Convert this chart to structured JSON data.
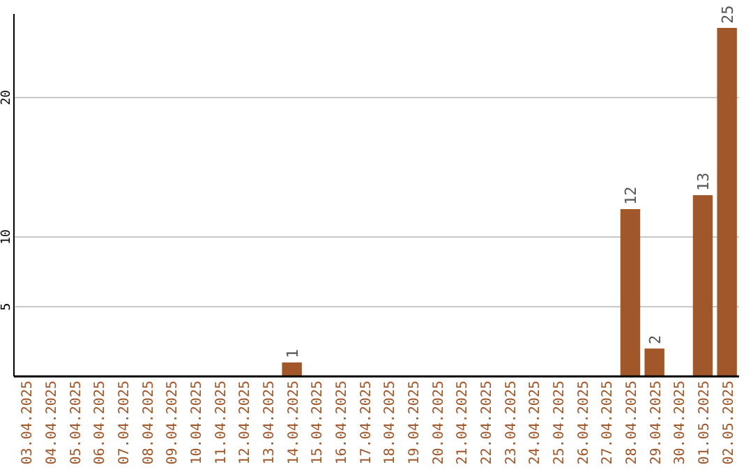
{
  "chart_data": {
    "type": "bar",
    "categories": [
      "03.04.2025",
      "04.04.2025",
      "05.04.2025",
      "06.04.2025",
      "07.04.2025",
      "08.04.2025",
      "09.04.2025",
      "10.04.2025",
      "11.04.2025",
      "12.04.2025",
      "13.04.2025",
      "14.04.2025",
      "15.04.2025",
      "16.04.2025",
      "17.04.2025",
      "18.04.2025",
      "19.04.2025",
      "20.04.2025",
      "21.04.2025",
      "22.04.2025",
      "23.04.2025",
      "24.04.2025",
      "25.04.2025",
      "26.04.2025",
      "27.04.2025",
      "28.04.2025",
      "29.04.2025",
      "30.04.2025",
      "01.05.2025",
      "02.05.2025"
    ],
    "values": [
      0,
      0,
      0,
      0,
      0,
      0,
      0,
      0,
      0,
      0,
      0,
      1,
      0,
      0,
      0,
      0,
      0,
      0,
      0,
      0,
      0,
      0,
      0,
      0,
      0,
      12,
      2,
      0,
      13,
      25
    ],
    "value_labels": [
      null,
      null,
      null,
      null,
      null,
      null,
      null,
      null,
      null,
      null,
      null,
      "1",
      null,
      null,
      null,
      null,
      null,
      null,
      null,
      null,
      null,
      null,
      null,
      null,
      null,
      "12",
      "2",
      null,
      "13",
      "25"
    ],
    "color": "#a0572a",
    "ylim": [
      0,
      26
    ],
    "yticks": [
      5,
      10,
      20
    ],
    "grid": "y"
  }
}
